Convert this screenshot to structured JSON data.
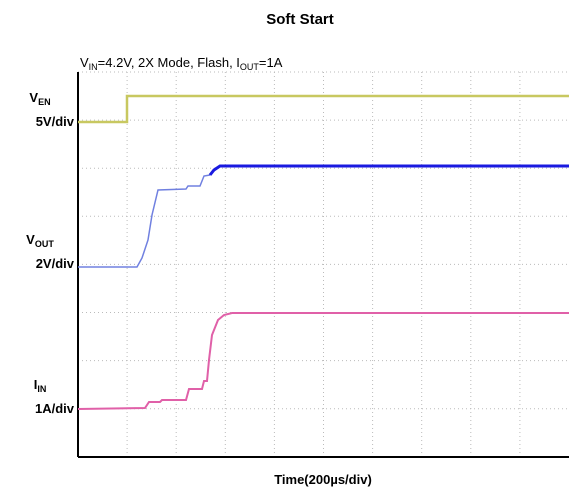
{
  "title": "Soft Start",
  "conditions": {
    "parts": [
      "V",
      "IN",
      "=4.2V, 2X Mode, Flash, I",
      "OUT",
      "=1A"
    ]
  },
  "channels": [
    {
      "symbol": "V",
      "sub": "EN",
      "scale": "5V/div"
    },
    {
      "symbol": "V",
      "sub": "OUT",
      "scale": "2V/div"
    },
    {
      "symbol": "I",
      "sub": "IN",
      "scale": "1A/div"
    }
  ],
  "x_label": "Time(200µs/div)"
}
